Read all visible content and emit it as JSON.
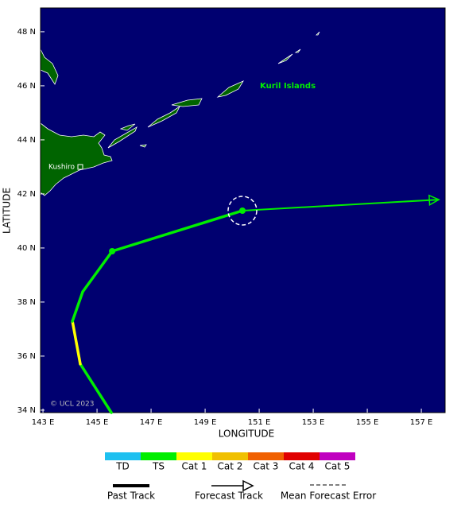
{
  "map": {
    "xlim": [
      142.91,
      157.88
    ],
    "ylim": [
      33.91,
      48.88
    ],
    "xticks": [
      {
        "value": 143,
        "label": "143 E"
      },
      {
        "value": 145,
        "label": "145 E"
      },
      {
        "value": 147,
        "label": "147 E"
      },
      {
        "value": 149,
        "label": "149 E"
      },
      {
        "value": 151,
        "label": "151 E"
      },
      {
        "value": 153,
        "label": "153 E"
      },
      {
        "value": 155,
        "label": "155 E"
      },
      {
        "value": 157,
        "label": "157 E"
      }
    ],
    "yticks": [
      {
        "value": 34,
        "label": "34 N"
      },
      {
        "value": 36,
        "label": "36 N"
      },
      {
        "value": 38,
        "label": "38 N"
      },
      {
        "value": 40,
        "label": "40 N"
      },
      {
        "value": 42,
        "label": "42 N"
      },
      {
        "value": 44,
        "label": "44 N"
      },
      {
        "value": 46,
        "label": "46 N"
      },
      {
        "value": 48,
        "label": "48 N"
      }
    ],
    "xlabel": "LONGITUDE",
    "ylabel": "LATITUDE",
    "region_label": "Kuril Islands",
    "city_label": "Kushiro",
    "credit": "© UCL 2023"
  },
  "track": {
    "points": [
      {
        "lon": 145.53,
        "lat": 33.91,
        "color": "#00ee00"
      },
      {
        "lon": 144.38,
        "lat": 35.71,
        "color": "#ffff00"
      },
      {
        "lon": 144.09,
        "lat": 37.29,
        "color": "#00ee00"
      },
      {
        "lon": 144.47,
        "lat": 38.38,
        "color": "#00ee00"
      },
      {
        "lon": 145.56,
        "lat": 39.88,
        "color": "#00ee00",
        "marker": true
      },
      {
        "lon": 150.38,
        "lat": 41.38,
        "color": "#00ee00",
        "marker": true
      }
    ],
    "forecast": {
      "lon": 157.65,
      "lat": 41.79
    }
  },
  "intensity_scale": [
    {
      "label": "TD",
      "color": "#1ec0f0"
    },
    {
      "label": "TS",
      "color": "#00ee00"
    },
    {
      "label": "Cat 1",
      "color": "#ffff00"
    },
    {
      "label": "Cat 2",
      "color": "#f0c000"
    },
    {
      "label": "Cat 3",
      "color": "#f06000"
    },
    {
      "label": "Cat 4",
      "color": "#e00000"
    },
    {
      "label": "Cat 5",
      "color": "#c000c0"
    }
  ],
  "track_legend": [
    "Past Track",
    "Forecast Track",
    "Mean Forecast Error"
  ]
}
